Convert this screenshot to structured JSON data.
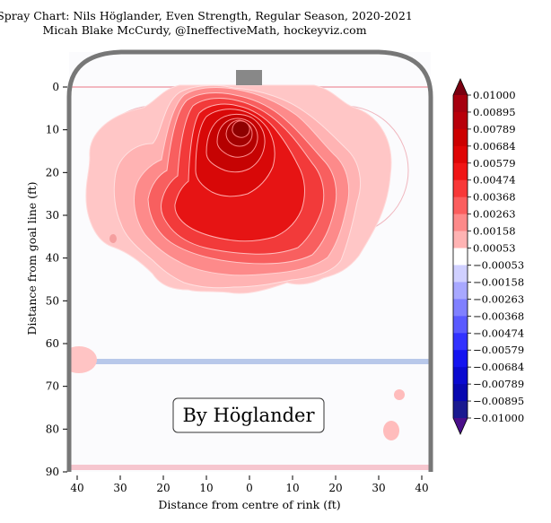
{
  "chart_data": {
    "type": "heatmap",
    "title": "Spray Chart: Nils Höglander, Even Strength, Regular Season, 2020-2021",
    "subtitle": "Micah Blake McCurdy, @IneffectiveMath, hockeyviz.com",
    "xlabel": "Distance from centre of rink (ft)",
    "ylabel": "Distance from goal line (ft)",
    "xlim": [
      42,
      -42
    ],
    "ylim": [
      -5,
      90
    ],
    "x_ticks": [
      "40",
      "30",
      "20",
      "10",
      "0",
      "10",
      "20",
      "30",
      "40"
    ],
    "x_tick_values": [
      40,
      30,
      20,
      10,
      0,
      -10,
      -20,
      -30,
      -40
    ],
    "y_ticks": [
      "0",
      "10",
      "20",
      "30",
      "40",
      "50",
      "60",
      "70",
      "80",
      "90"
    ],
    "y_tick_values": [
      0,
      10,
      20,
      30,
      40,
      50,
      60,
      70,
      80,
      90
    ],
    "annotation": "By Höglander",
    "colorbar": {
      "levels": [
        0.01,
        0.00895,
        0.00789,
        0.00684,
        0.00579,
        0.00474,
        0.00368,
        0.00263,
        0.00158,
        0.00053,
        -0.00053,
        -0.00158,
        -0.00263,
        -0.00368,
        -0.00474,
        -0.00579,
        -0.00684,
        -0.00789,
        -0.00895,
        -0.01
      ],
      "labels": [
        "0.01000",
        "0.00895",
        "0.00789",
        "0.00684",
        "0.00579",
        "0.00474",
        "0.00368",
        "0.00263",
        "0.00158",
        "0.00053",
        "−0.00053",
        "−0.00158",
        "−0.00263",
        "−0.00368",
        "−0.00474",
        "−0.00579",
        "−0.00684",
        "−0.00789",
        "−0.00895",
        "−0.01000"
      ],
      "band_colors": [
        "#960014",
        "#a6000f",
        "#b8000b",
        "#cc0000",
        "#df0505",
        "#f01515",
        "#f83838",
        "#fb5e5e",
        "#fd8a8a",
        "#ffb3b3",
        "#ffd3d3",
        "#ffffff",
        "#d0d0ff",
        "#a8a8ff",
        "#8080ff",
        "#5a5aff",
        "#3232ff",
        "#1414f0",
        "#0a0ad0",
        "#0808b0",
        "#1a1a90",
        "#40108a"
      ]
    },
    "hot_spot": {
      "x": 0,
      "y": 9
    },
    "shot_clusters": [
      {
        "x": 31,
        "y": 35,
        "level": 0.00053
      },
      {
        "x": 40,
        "y": 64.5,
        "level": 0.00053
      },
      {
        "x": -35,
        "y": 72.5,
        "level": 0.00053
      },
      {
        "x": -33.5,
        "y": 80.5,
        "level": 0.00053
      }
    ],
    "colors": {
      "positive": "#d40000",
      "negative": "#1515d8",
      "boards": "#777777",
      "goal_line": "#f2b8c0",
      "blue_line": "#b8c8ea",
      "net": "#888888"
    }
  }
}
